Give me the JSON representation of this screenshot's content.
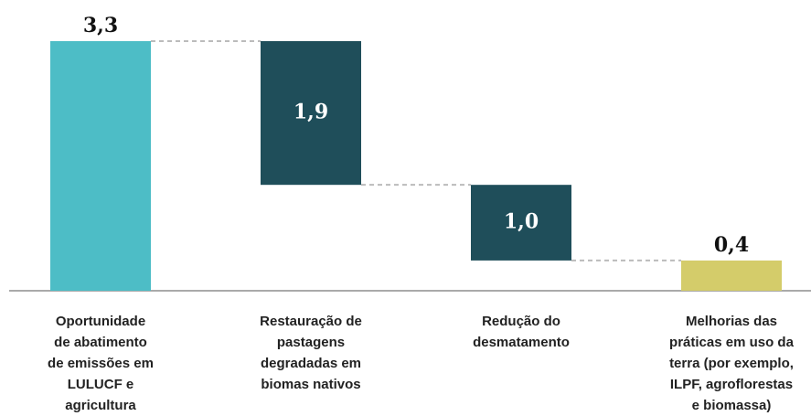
{
  "chart_data": {
    "type": "waterfall",
    "categories": [
      "Oportunidade\nde abatimento\nde emissões em\nLULUCF e\nagricultura",
      "Restauração de\npastagens\ndegradadas em\nbiomas nativos",
      "Redução do\ndesmatamento",
      "Melhorias das\npráticas em uso da\nterra (por exemplo,\nILPF, agroflorestas\ne biomassa)"
    ],
    "values": [
      3.3,
      1.9,
      1.0,
      0.4
    ],
    "value_labels": [
      "3,3",
      "1,9",
      "1,0",
      "0,4"
    ],
    "measures": [
      "total",
      "decrease",
      "decrease",
      "total"
    ],
    "colors": [
      "#4dbdc6",
      "#1f4e5a",
      "#1f4e5a",
      "#d4cc6a"
    ],
    "ylim": [
      0,
      3.3
    ]
  }
}
